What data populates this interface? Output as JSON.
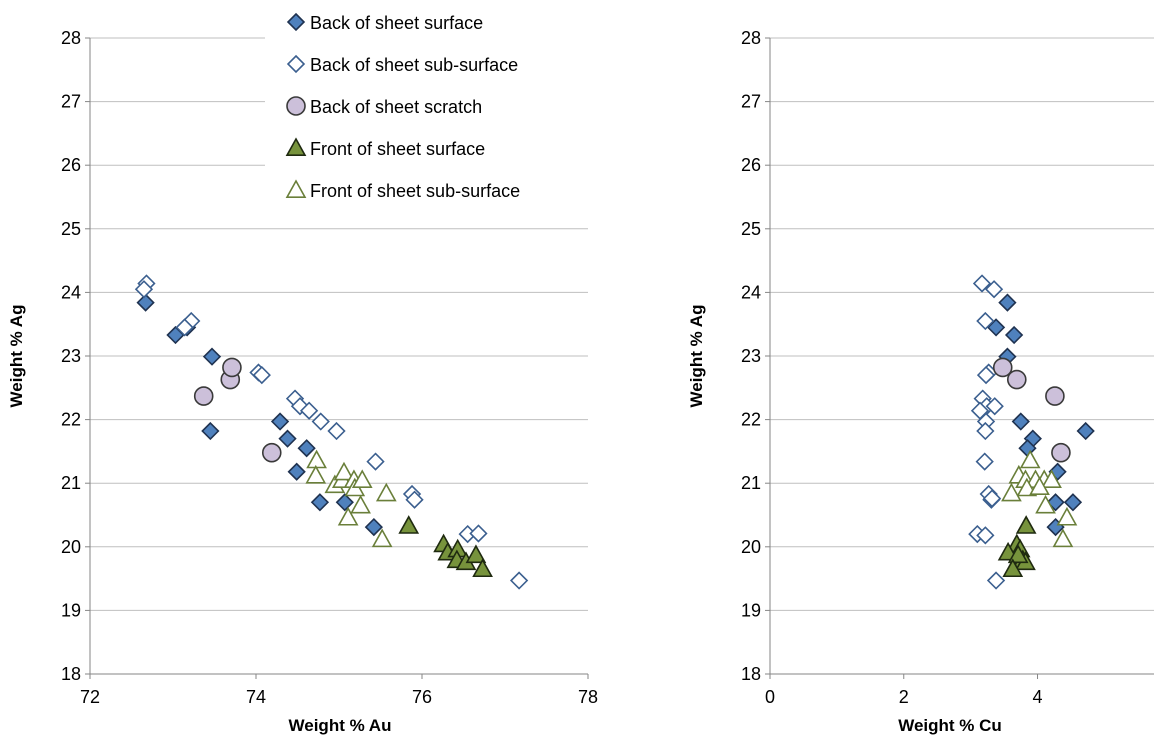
{
  "series_styles": [
    {
      "name": "Back of sheet surface",
      "marker": "diamond",
      "fill": "#4f81bd",
      "stroke": "#1f3250"
    },
    {
      "name": "Back of sheet sub-surface",
      "marker": "diamond",
      "fill": "#ffffff",
      "stroke": "#3b5f8f"
    },
    {
      "name": "Back of sheet scratch",
      "marker": "circle",
      "fill": "#ccc0da",
      "stroke": "#3a3a3a"
    },
    {
      "name": "Front of sheet surface",
      "marker": "triangle",
      "fill": "#77933c",
      "stroke": "#1f2a10"
    },
    {
      "name": "Front of sheet sub-surface",
      "marker": "triangle",
      "fill": "#ffffff",
      "stroke": "#6a7f3a"
    }
  ],
  "chart_data": [
    {
      "type": "scatter",
      "xlabel": "Weight % Au",
      "ylabel": "Weight % Ag",
      "xlim": [
        72,
        78
      ],
      "ylim": [
        18,
        28
      ],
      "xticks": [
        "72",
        "74",
        "76",
        "78"
      ],
      "yticks": [
        "18",
        "19",
        "20",
        "21",
        "22",
        "23",
        "24",
        "25",
        "26",
        "27",
        "28"
      ],
      "grid": "horizontal",
      "legend": "top",
      "series": [
        {
          "name": "Back of sheet surface",
          "points": [
            [
              72.67,
              23.84
            ],
            [
              73.03,
              23.33
            ],
            [
              73.17,
              23.45
            ],
            [
              73.47,
              22.99
            ],
            [
              73.45,
              21.82
            ],
            [
              74.29,
              21.97
            ],
            [
              74.38,
              21.7
            ],
            [
              74.49,
              21.18
            ],
            [
              74.61,
              21.55
            ],
            [
              74.77,
              20.7
            ],
            [
              75.07,
              20.7
            ],
            [
              75.42,
              20.31
            ]
          ]
        },
        {
          "name": "Back of sheet sub-surface",
          "points": [
            [
              72.68,
              24.14
            ],
            [
              72.65,
              24.05
            ],
            [
              73.22,
              23.55
            ],
            [
              73.14,
              23.45
            ],
            [
              74.03,
              22.74
            ],
            [
              74.07,
              22.7
            ],
            [
              74.47,
              22.33
            ],
            [
              74.53,
              22.21
            ],
            [
              74.64,
              22.14
            ],
            [
              74.78,
              21.97
            ],
            [
              74.97,
              21.82
            ],
            [
              75.44,
              21.34
            ],
            [
              75.88,
              20.83
            ],
            [
              75.91,
              20.74
            ],
            [
              76.55,
              20.2
            ],
            [
              76.68,
              20.21
            ],
            [
              77.17,
              19.47
            ]
          ]
        },
        {
          "name": "Back of sheet scratch",
          "points": [
            [
              73.37,
              22.37
            ],
            [
              73.69,
              22.63
            ],
            [
              73.71,
              22.82
            ],
            [
              74.19,
              21.48
            ]
          ]
        },
        {
          "name": "Front of sheet surface",
          "points": [
            [
              75.84,
              20.33
            ],
            [
              76.26,
              20.04
            ],
            [
              76.31,
              19.91
            ],
            [
              76.43,
              19.96
            ],
            [
              76.42,
              19.79
            ],
            [
              76.53,
              19.76
            ],
            [
              76.65,
              19.87
            ],
            [
              76.73,
              19.65
            ]
          ]
        },
        {
          "name": "Front of sheet sub-surface",
          "points": [
            [
              74.73,
              21.36
            ],
            [
              74.72,
              21.12
            ],
            [
              74.95,
              20.97
            ],
            [
              75.04,
              21.05
            ],
            [
              75.06,
              21.17
            ],
            [
              75.18,
              21.05
            ],
            [
              75.19,
              20.92
            ],
            [
              75.26,
              20.65
            ],
            [
              75.11,
              20.46
            ],
            [
              75.28,
              21.05
            ],
            [
              75.57,
              20.84
            ],
            [
              75.52,
              20.12
            ]
          ]
        }
      ]
    },
    {
      "type": "scatter",
      "xlabel": "Weight % Cu",
      "ylabel": "Weight % Ag",
      "xlim": [
        0,
        6
      ],
      "ylim": [
        18,
        28
      ],
      "xticks": [
        "0",
        "2",
        "4",
        "6"
      ],
      "yticks": [
        "18",
        "19",
        "20",
        "21",
        "22",
        "23",
        "24",
        "25",
        "26",
        "27",
        "28"
      ],
      "grid": "horizontal",
      "series": [
        {
          "name": "Back of sheet surface",
          "points": [
            [
              3.55,
              23.84
            ],
            [
              3.38,
              23.45
            ],
            [
              3.65,
              23.33
            ],
            [
              3.55,
              22.99
            ],
            [
              3.75,
              21.97
            ],
            [
              3.93,
              21.7
            ],
            [
              3.85,
              21.55
            ],
            [
              4.72,
              21.82
            ],
            [
              4.3,
              21.18
            ],
            [
              4.27,
              20.7
            ],
            [
              4.53,
              20.7
            ],
            [
              4.27,
              20.31
            ]
          ]
        },
        {
          "name": "Back of sheet sub-surface",
          "points": [
            [
              3.17,
              24.14
            ],
            [
              3.35,
              24.05
            ],
            [
              3.22,
              23.55
            ],
            [
              3.27,
              22.74
            ],
            [
              3.23,
              22.7
            ],
            [
              3.18,
              22.33
            ],
            [
              3.24,
              22.21
            ],
            [
              3.36,
              22.21
            ],
            [
              3.14,
              22.14
            ],
            [
              3.23,
              21.97
            ],
            [
              3.22,
              21.82
            ],
            [
              3.21,
              21.34
            ],
            [
              3.27,
              20.83
            ],
            [
              3.31,
              20.74
            ],
            [
              3.32,
              20.76
            ],
            [
              3.1,
              20.2
            ],
            [
              3.22,
              20.18
            ],
            [
              3.38,
              19.47
            ]
          ]
        },
        {
          "name": "Back of sheet scratch",
          "points": [
            [
              3.48,
              22.82
            ],
            [
              3.69,
              22.63
            ],
            [
              4.26,
              22.37
            ],
            [
              4.35,
              21.48
            ]
          ]
        },
        {
          "name": "Front of sheet surface",
          "points": [
            [
              3.83,
              20.33
            ],
            [
              3.69,
              20.04
            ],
            [
              3.74,
              19.96
            ],
            [
              3.56,
              19.91
            ],
            [
              3.78,
              19.79
            ],
            [
              3.82,
              19.76
            ],
            [
              3.71,
              19.87
            ],
            [
              3.63,
              19.65
            ]
          ]
        },
        {
          "name": "Front of sheet sub-surface",
          "points": [
            [
              3.89,
              21.36
            ],
            [
              3.72,
              21.12
            ],
            [
              3.82,
              21.05
            ],
            [
              3.97,
              21.05
            ],
            [
              4.1,
              21.05
            ],
            [
              4.21,
              21.05
            ],
            [
              3.84,
              20.92
            ],
            [
              4.03,
              20.94
            ],
            [
              3.61,
              20.84
            ],
            [
              4.12,
              20.65
            ],
            [
              4.44,
              20.46
            ],
            [
              4.38,
              20.12
            ]
          ]
        }
      ]
    }
  ]
}
